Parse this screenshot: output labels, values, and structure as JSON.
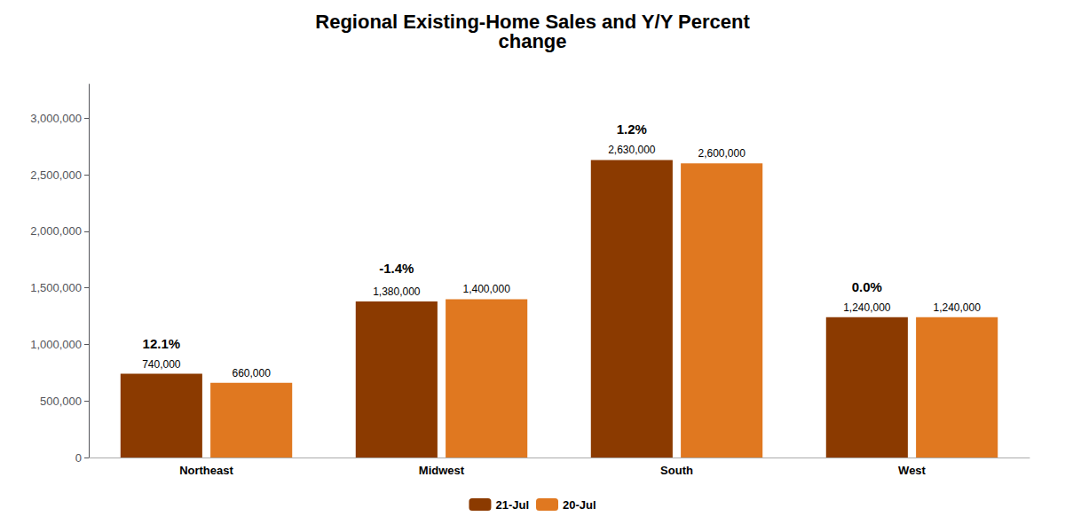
{
  "chart_data": {
    "type": "bar",
    "title": "Regional Existing-Home Sales and Y/Y Percent\nchange",
    "categories": [
      "Northeast",
      "Midwest",
      "South",
      "West"
    ],
    "series": [
      {
        "name": "21-Jul",
        "color": "#8B3A00",
        "values": [
          740000,
          1380000,
          2630000,
          1240000
        ],
        "value_labels": [
          "740,000",
          "1,380,000",
          "2,630,000",
          "1,240,000"
        ]
      },
      {
        "name": "20-Jul",
        "color": "#E07820",
        "values": [
          660000,
          1400000,
          2600000,
          1240000
        ],
        "value_labels": [
          "660,000",
          "1,400,000",
          "2,600,000",
          "1,240,000"
        ]
      }
    ],
    "annotations": [
      {
        "x": "Northeast",
        "text": "12.1%"
      },
      {
        "x": "Midwest",
        "text": "-1.4%"
      },
      {
        "x": "South",
        "text": "1.2%"
      },
      {
        "x": "West",
        "text": "0.0%"
      }
    ],
    "ylim": [
      0,
      3300000
    ],
    "yticks": [
      0,
      {
        "value": 500000,
        "label": "500,000"
      },
      {
        "value": 1000000,
        "label": "1,000,000"
      },
      {
        "value": 1500000,
        "label": "1,500,000"
      },
      {
        "value": 2000000,
        "label": "2,000,000"
      },
      {
        "value": 2500000,
        "label": "2,500,000"
      },
      {
        "value": 3000000,
        "label": "3,000,000"
      }
    ],
    "data_labels": true,
    "legend": "bottom",
    "grid": false
  }
}
